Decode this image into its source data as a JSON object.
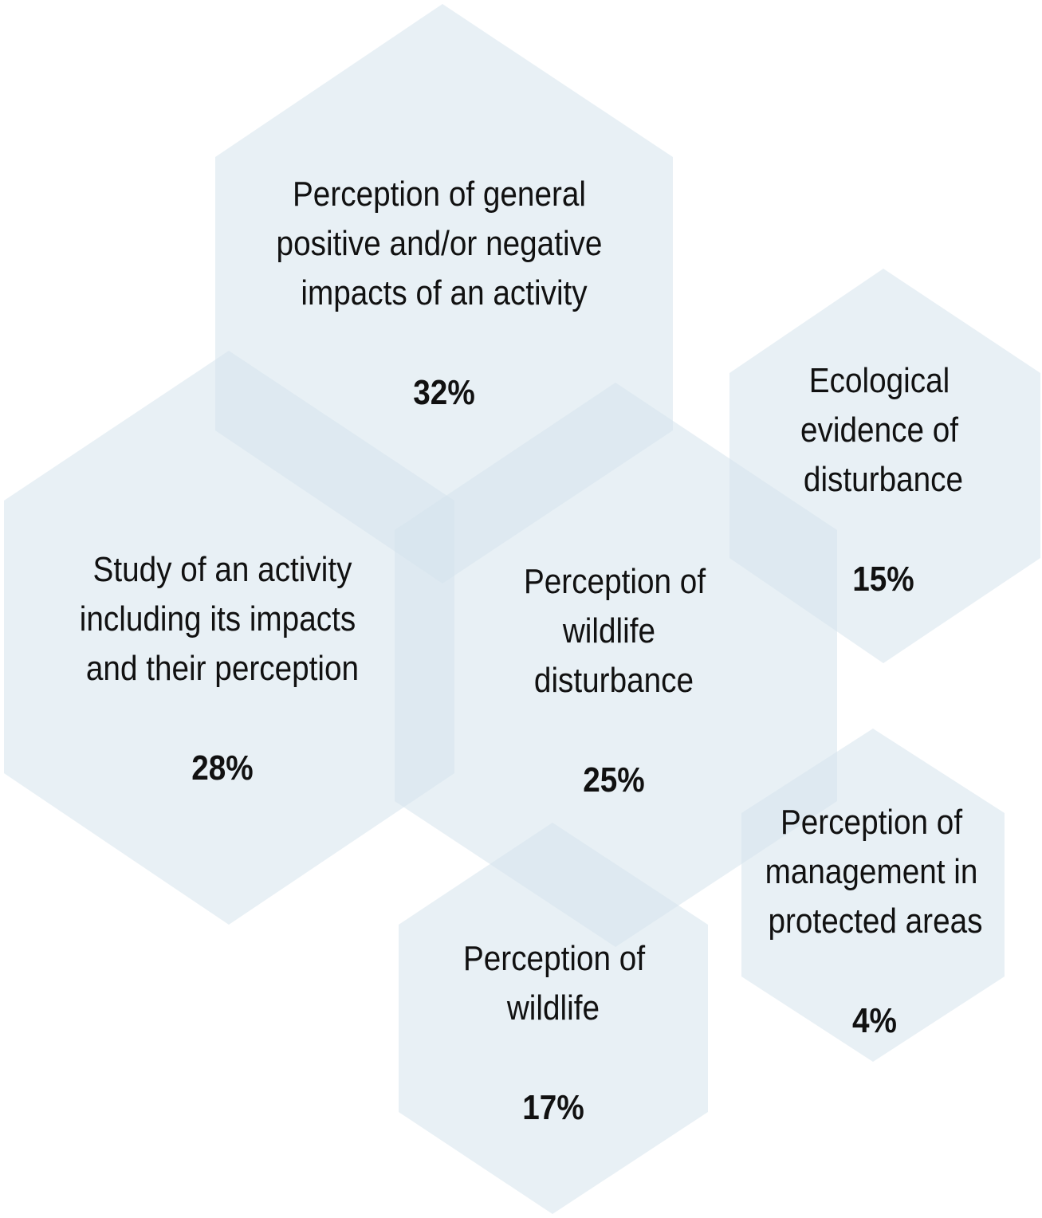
{
  "hexagons": [
    {
      "id": "general-impacts",
      "lines": [
        "Perception of general",
        "positive and/or negative",
        "impacts of an activity"
      ],
      "value": "32%"
    },
    {
      "id": "activity-study",
      "lines": [
        "Study of an activity",
        "including its impacts",
        "and their perception"
      ],
      "value": "28%"
    },
    {
      "id": "wildlife-disturbance",
      "lines": [
        "Perception of",
        "wildlife",
        "disturbance"
      ],
      "value": "25%"
    },
    {
      "id": "ecological-evidence",
      "lines": [
        "Ecological",
        "evidence of",
        "disturbance"
      ],
      "value": "15%"
    },
    {
      "id": "wildlife",
      "lines": [
        "Perception of",
        "wildlife"
      ],
      "value": "17%"
    },
    {
      "id": "management",
      "lines": [
        "Perception of",
        "management in",
        "protected areas"
      ],
      "value": "4%"
    }
  ]
}
